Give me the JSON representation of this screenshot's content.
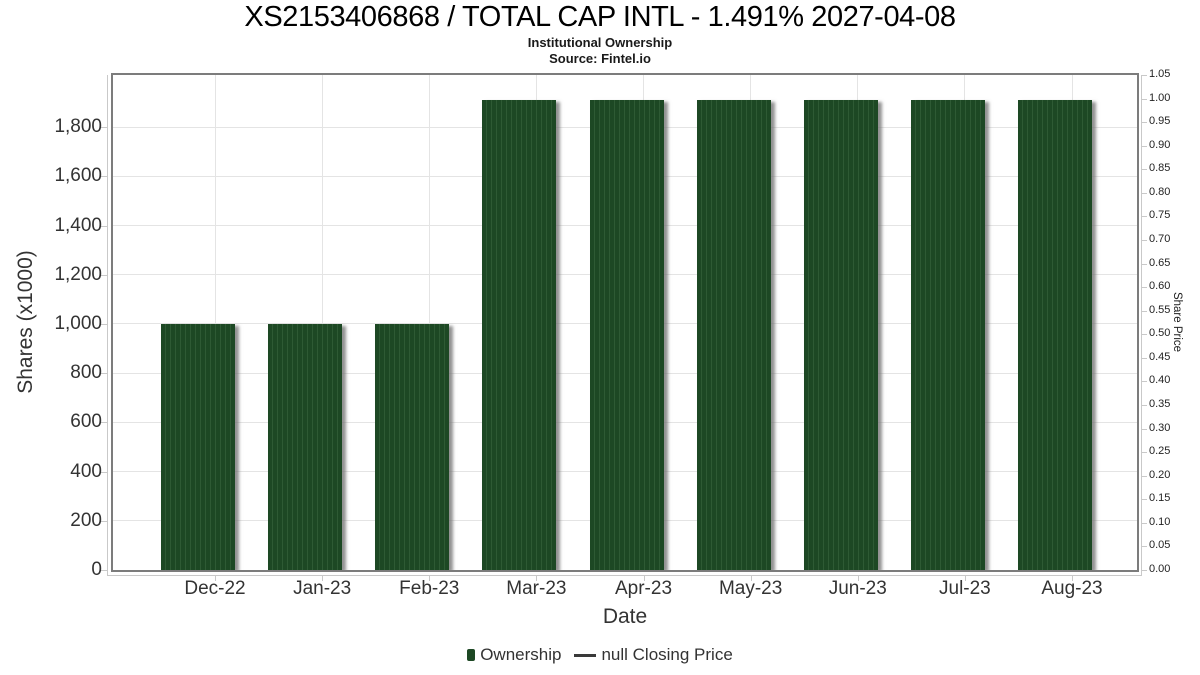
{
  "chart_data": {
    "type": "bar",
    "title": "XS2153406868 / TOTAL CAP INTL - 1.491% 2027-04-08",
    "subtitle": "Institutional Ownership",
    "source": "Source: Fintel.io",
    "xlabel": "Date",
    "ylabel_left": "Shares (x1000)",
    "ylabel_right": "Share Price",
    "categories": [
      "Dec-22",
      "Jan-23",
      "Feb-23",
      "Mar-23",
      "Apr-23",
      "May-23",
      "Jun-23",
      "Jul-23",
      "Aug-23"
    ],
    "series": [
      {
        "name": "Ownership",
        "type": "bar",
        "color": "#1d4824",
        "values": [
          1000,
          1000,
          1000,
          1910,
          1910,
          1910,
          1910,
          1910,
          1910
        ]
      },
      {
        "name": "null Closing Price",
        "type": "line",
        "color": "#3a3a3a",
        "values": []
      }
    ],
    "ylim_left": [
      0,
      2012
    ],
    "ylim_right": [
      0,
      1.05
    ],
    "yticks_left": [
      "0",
      "200",
      "400",
      "600",
      "800",
      "1,000",
      "1,200",
      "1,400",
      "1,600",
      "1,800"
    ],
    "yticks_right": [
      "0.00",
      "0.05",
      "0.10",
      "0.15",
      "0.20",
      "0.25",
      "0.30",
      "0.35",
      "0.40",
      "0.45",
      "0.50",
      "0.55",
      "0.60",
      "0.65",
      "0.70",
      "0.75",
      "0.80",
      "0.85",
      "0.90",
      "0.95",
      "1.00",
      "1.05"
    ],
    "grid": true,
    "legend_position": "bottom"
  }
}
